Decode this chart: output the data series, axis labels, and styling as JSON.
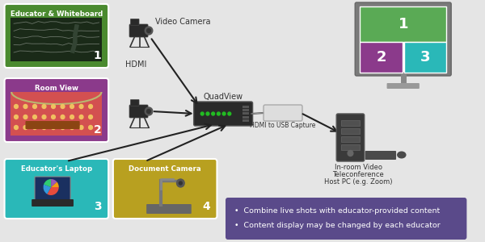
{
  "bg_color": "#e5e5e5",
  "box1_color": "#4a8a2f",
  "box2_color": "#8b3a8b",
  "box3_color": "#2ab8b8",
  "box4_color": "#b8a020",
  "monitor_green": "#5aaa55",
  "monitor_purple": "#8b3a8b",
  "monitor_teal": "#2ab8b8",
  "bullet_bg": "#5a4a8a",
  "box1_label": "Educator & Whiteboard",
  "box2_label": "Room View",
  "box3_label": "Educator's Laptop",
  "box4_label": "Document Camera",
  "quadview_label": "QuadView",
  "camera_label": "Video Camera",
  "hdmi_label": "HDMI",
  "hdmi_usb_label": "HDMI to USB Capture",
  "pc_label1": "In-room Video",
  "pc_label2": "Teleconference",
  "pc_label3": "Host PC (e.g. Zoom)",
  "bullet1": "Combine live shots with educator-provided content",
  "bullet2": "Content display may be changed by each educator",
  "arrow_color": "#333333",
  "text_color": "#333333"
}
